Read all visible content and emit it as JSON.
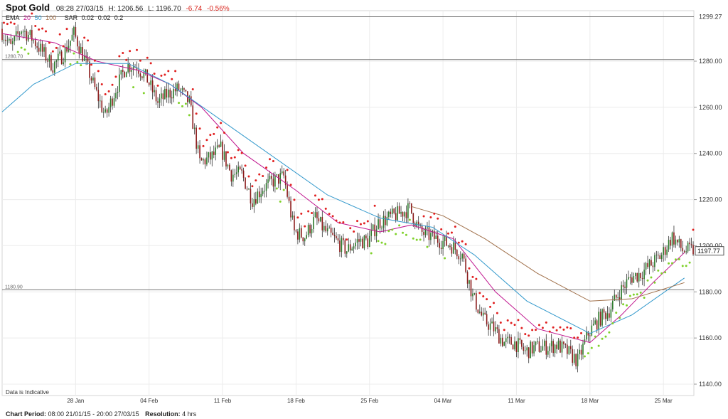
{
  "header": {
    "title": "Spot Gold",
    "timestamp": "08:28 27/03/15",
    "high_label": "H: 1206.56",
    "low_label": "L: 1196.70",
    "change": "-6.74",
    "change_pct": "-0.56%",
    "change_color": "#d9251d"
  },
  "indicators": {
    "ema_label": "EMA",
    "ema_periods": [
      "20",
      "50",
      "100"
    ],
    "ema_colors": [
      "#c0168f",
      "#3399cc",
      "#a0704a"
    ],
    "sar_label": "SAR",
    "sar_params": [
      "0.02",
      "0.02",
      "0.2"
    ]
  },
  "footer": {
    "period_label": "Chart Period:",
    "period_value": "08:00 21/01/15 - 20:00 27/03/15",
    "resolution_label": "Resolution:",
    "resolution_value": "4 hrs"
  },
  "note": "Data is Indicative",
  "colors": {
    "candle_up": "#2a7a2a",
    "candle_down": "#8b1a1a",
    "sar_below": "#7fd12a",
    "sar_above": "#e02020",
    "grid": "#ececec",
    "reference_line": "#777777"
  },
  "chart_data": {
    "type": "candlestick",
    "instrument": "Spot Gold",
    "resolution": "4 hrs",
    "y_axis": {
      "position": "right",
      "ticks": [
        1140,
        1160,
        1180,
        1200,
        1220,
        1240,
        1260,
        1280
      ],
      "tick_labels": [
        "1140.00",
        "1160.00",
        "1180.00",
        "1200.00",
        "1220.00",
        "1240.00",
        "1260.00",
        "1280.00"
      ],
      "ylim": [
        1136.5,
        1303
      ]
    },
    "x_axis": {
      "date_range": [
        "2015-01-21",
        "2015-03-27"
      ],
      "tick_dates": [
        "2015-01-28",
        "2015-02-04",
        "2015-02-11",
        "2015-02-18",
        "2015-02-25",
        "2015-03-04",
        "2015-03-11",
        "2015-03-18",
        "2015-03-25"
      ],
      "tick_labels": [
        "28 Jan",
        "04 Feb",
        "11 Feb",
        "18 Feb",
        "25 Feb",
        "04 Mar",
        "11 Mar",
        "18 Mar",
        "25 Mar"
      ]
    },
    "grid": true,
    "reference_lines": [
      {
        "value": 1299.27,
        "label": "1299.27",
        "label_side": "right"
      },
      {
        "value": 1280.7,
        "label": "1280.70",
        "label_side": "left"
      },
      {
        "value": 1180.9,
        "label": "1180.90",
        "label_side": "left"
      }
    ],
    "last_price": {
      "value": 1197.77,
      "label": "1197.77"
    },
    "price_path": [
      {
        "date": "2015-01-21",
        "close": 1294
      },
      {
        "date": "2015-01-22",
        "close": 1286
      },
      {
        "date": "2015-01-23",
        "close": 1294
      },
      {
        "date": "2015-01-24",
        "close": 1290
      },
      {
        "date": "2015-01-25",
        "close": 1284
      },
      {
        "date": "2015-01-26",
        "close": 1278
      },
      {
        "date": "2015-01-27",
        "close": 1283
      },
      {
        "date": "2015-01-28",
        "close": 1292
      },
      {
        "date": "2015-01-29",
        "close": 1281
      },
      {
        "date": "2015-01-30",
        "close": 1268
      },
      {
        "date": "2015-01-31",
        "close": 1256
      },
      {
        "date": "2015-02-01",
        "close": 1268
      },
      {
        "date": "2015-02-02",
        "close": 1278
      },
      {
        "date": "2015-02-03",
        "close": 1278
      },
      {
        "date": "2015-02-04",
        "close": 1272
      },
      {
        "date": "2015-02-05",
        "close": 1262
      },
      {
        "date": "2015-02-06",
        "close": 1266
      },
      {
        "date": "2015-02-07",
        "close": 1268
      },
      {
        "date": "2015-02-08",
        "close": 1262
      },
      {
        "date": "2015-02-09",
        "close": 1236
      },
      {
        "date": "2015-02-10",
        "close": 1238
      },
      {
        "date": "2015-02-11",
        "close": 1242
      },
      {
        "date": "2015-02-12",
        "close": 1231
      },
      {
        "date": "2015-02-13",
        "close": 1231
      },
      {
        "date": "2015-02-14",
        "close": 1220
      },
      {
        "date": "2015-02-15",
        "close": 1225
      },
      {
        "date": "2015-02-16",
        "close": 1228
      },
      {
        "date": "2015-02-17",
        "close": 1230
      },
      {
        "date": "2015-02-18",
        "close": 1206
      },
      {
        "date": "2015-02-19",
        "close": 1204
      },
      {
        "date": "2015-02-20",
        "close": 1212
      },
      {
        "date": "2015-02-21",
        "close": 1206
      },
      {
        "date": "2015-02-22",
        "close": 1202
      },
      {
        "date": "2015-02-23",
        "close": 1198
      },
      {
        "date": "2015-02-24",
        "close": 1202
      },
      {
        "date": "2015-02-25",
        "close": 1202
      },
      {
        "date": "2015-02-26",
        "close": 1210
      },
      {
        "date": "2015-02-27",
        "close": 1212
      },
      {
        "date": "2015-02-28",
        "close": 1214
      },
      {
        "date": "2015-03-01",
        "close": 1216
      },
      {
        "date": "2015-03-02",
        "close": 1206
      },
      {
        "date": "2015-03-03",
        "close": 1204
      },
      {
        "date": "2015-03-04",
        "close": 1202
      },
      {
        "date": "2015-03-05",
        "close": 1200
      },
      {
        "date": "2015-03-06",
        "close": 1196
      },
      {
        "date": "2015-03-07",
        "close": 1178
      },
      {
        "date": "2015-03-08",
        "close": 1168
      },
      {
        "date": "2015-03-09",
        "close": 1164
      },
      {
        "date": "2015-03-10",
        "close": 1158
      },
      {
        "date": "2015-03-11",
        "close": 1158
      },
      {
        "date": "2015-03-12",
        "close": 1154
      },
      {
        "date": "2015-03-13",
        "close": 1156
      },
      {
        "date": "2015-03-14",
        "close": 1156
      },
      {
        "date": "2015-03-15",
        "close": 1157
      },
      {
        "date": "2015-03-16",
        "close": 1154
      },
      {
        "date": "2015-03-17",
        "close": 1150
      },
      {
        "date": "2015-03-18",
        "close": 1162
      },
      {
        "date": "2015-03-19",
        "close": 1168
      },
      {
        "date": "2015-03-20",
        "close": 1172
      },
      {
        "date": "2015-03-21",
        "close": 1180
      },
      {
        "date": "2015-03-22",
        "close": 1186
      },
      {
        "date": "2015-03-23",
        "close": 1188
      },
      {
        "date": "2015-03-24",
        "close": 1192
      },
      {
        "date": "2015-03-25",
        "close": 1196
      },
      {
        "date": "2015-03-26",
        "close": 1204
      },
      {
        "date": "2015-03-27",
        "close": 1198
      }
    ],
    "ema_path": {
      "20": [
        {
          "date": "2015-01-21",
          "value": 1292
        },
        {
          "date": "2015-01-26",
          "value": 1288
        },
        {
          "date": "2015-01-30",
          "value": 1280
        },
        {
          "date": "2015-02-03",
          "value": 1276
        },
        {
          "date": "2015-02-06",
          "value": 1270
        },
        {
          "date": "2015-02-09",
          "value": 1260
        },
        {
          "date": "2015-02-13",
          "value": 1240
        },
        {
          "date": "2015-02-18",
          "value": 1224
        },
        {
          "date": "2015-02-22",
          "value": 1210
        },
        {
          "date": "2015-02-26",
          "value": 1206
        },
        {
          "date": "2015-03-01",
          "value": 1209
        },
        {
          "date": "2015-03-05",
          "value": 1203
        },
        {
          "date": "2015-03-09",
          "value": 1180
        },
        {
          "date": "2015-03-13",
          "value": 1164
        },
        {
          "date": "2015-03-18",
          "value": 1158
        },
        {
          "date": "2015-03-21",
          "value": 1170
        },
        {
          "date": "2015-03-24",
          "value": 1184
        },
        {
          "date": "2015-03-27",
          "value": 1197
        }
      ],
      "50": [
        {
          "date": "2015-01-21",
          "value": 1258
        },
        {
          "date": "2015-01-24",
          "value": 1270
        },
        {
          "date": "2015-01-28",
          "value": 1279
        },
        {
          "date": "2015-02-02",
          "value": 1279
        },
        {
          "date": "2015-02-06",
          "value": 1270
        },
        {
          "date": "2015-02-11",
          "value": 1254
        },
        {
          "date": "2015-02-16",
          "value": 1238
        },
        {
          "date": "2015-02-21",
          "value": 1222
        },
        {
          "date": "2015-02-26",
          "value": 1212
        },
        {
          "date": "2015-03-03",
          "value": 1208
        },
        {
          "date": "2015-03-07",
          "value": 1196
        },
        {
          "date": "2015-03-12",
          "value": 1176
        },
        {
          "date": "2015-03-18",
          "value": 1162
        },
        {
          "date": "2015-03-22",
          "value": 1170
        },
        {
          "date": "2015-03-27",
          "value": 1186
        }
      ],
      "100": [
        {
          "date": "2015-02-29",
          "value": 1217
        },
        {
          "date": "2015-03-04",
          "value": 1213
        },
        {
          "date": "2015-03-08",
          "value": 1203
        },
        {
          "date": "2015-03-13",
          "value": 1188
        },
        {
          "date": "2015-03-18",
          "value": 1176
        },
        {
          "date": "2015-03-22",
          "value": 1177
        },
        {
          "date": "2015-03-27",
          "value": 1184
        }
      ]
    }
  }
}
